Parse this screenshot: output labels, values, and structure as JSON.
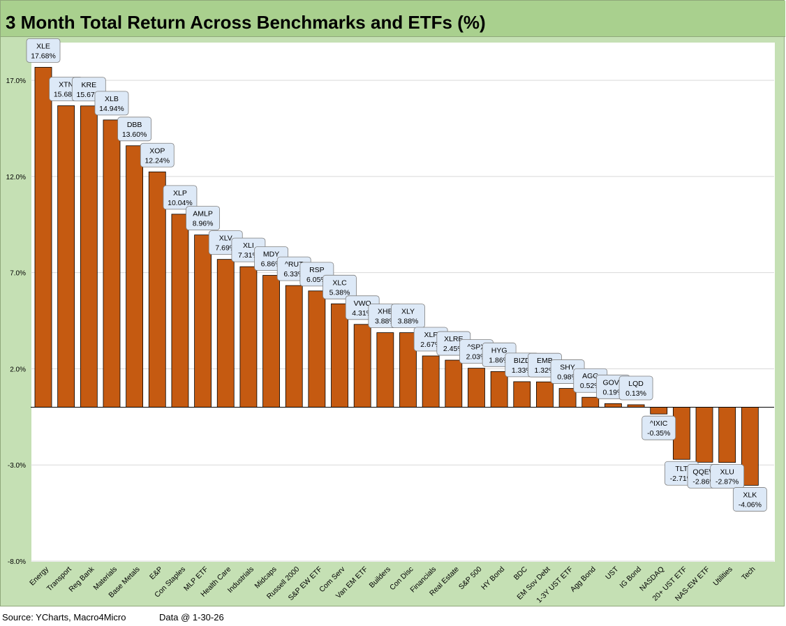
{
  "title": "3 Month Total Return Across Benchmarks and ETFs (%)",
  "footer": {
    "source": "Source: YCharts, Macro4Micro",
    "data_date": "Data @ 1-30-26"
  },
  "colors": {
    "bar": "#c55a11",
    "label_fill": "#dde9f7",
    "frame": "#c5e0b4",
    "title_bar": "#a9d08e"
  },
  "chart_data": {
    "type": "bar",
    "title": "3 Month Total Return Across Benchmarks and ETFs (%)",
    "ylim": [
      -8.0,
      19.0
    ],
    "yticks": [
      -8.0,
      -3.0,
      2.0,
      7.0,
      12.0,
      17.0
    ],
    "ytick_labels": [
      "-8.0%",
      "-3.0%",
      "2.0%",
      "7.0%",
      "12.0%",
      "17.0%"
    ],
    "xlabel": "",
    "ylabel": "",
    "categories": [
      "Energy",
      "Transport",
      "Reg Bank",
      "Materials",
      "Base Metals",
      "E&P",
      "Con Staples",
      "MLP ETF",
      "Health Care",
      "Industrials",
      "Midcaps",
      "Russell 2000",
      "S&P EW ETF",
      "Com Serv",
      "Van EM ETF",
      "Builders",
      "Con Disc",
      "Financials",
      "Real Estate",
      "S&P 500",
      "HY Bond",
      "BDC",
      "EM Sov Debt",
      "1-3Y UST ETF",
      "Agg Bond",
      "UST",
      "IG Bond",
      "NASDAQ",
      "20+ UST ETF",
      "NAS-EW ETF",
      "Utilities",
      "Tech"
    ],
    "tickers": [
      "XLE",
      "XTN",
      "KRE",
      "XLB",
      "DBB",
      "XOP",
      "XLP",
      "AMLP",
      "XLV",
      "XLI",
      "MDY",
      "^RUT",
      "RSP",
      "XLC",
      "VWO",
      "XHB",
      "XLY",
      "XLF",
      "XLRE",
      "^SPX",
      "HYG",
      "BIZD",
      "EMB",
      "SHY",
      "AGG",
      "GOVT",
      "LQD",
      "^IXIC",
      "TLT",
      "QQEW",
      "XLU",
      "XLK"
    ],
    "values": [
      17.68,
      15.68,
      15.67,
      14.94,
      13.6,
      12.24,
      10.04,
      8.96,
      7.69,
      7.31,
      6.86,
      6.33,
      6.05,
      5.38,
      4.31,
      3.88,
      3.88,
      2.67,
      2.45,
      2.03,
      1.86,
      1.33,
      1.32,
      0.98,
      0.52,
      0.19,
      0.13,
      -0.35,
      -2.71,
      -2.86,
      -2.87,
      -4.06
    ],
    "value_labels": [
      "17.68%",
      "15.68%",
      "15.67%",
      "14.94%",
      "13.60%",
      "12.24%",
      "10.04%",
      "8.96%",
      "7.69%",
      "7.31%",
      "6.86%",
      "6.33%",
      "6.05%",
      "5.38%",
      "4.31%",
      "3.88%",
      "3.88%",
      "2.67%",
      "2.45%",
      "2.03%",
      "1.86%",
      "1.33%",
      "1.32%",
      "0.98%",
      "0.52%",
      "0.19%",
      "0.13%",
      "-0.35%",
      "-2.71%",
      "-2.86%",
      "-2.87%",
      "-4.06%"
    ],
    "grid": true,
    "legend": "none"
  }
}
